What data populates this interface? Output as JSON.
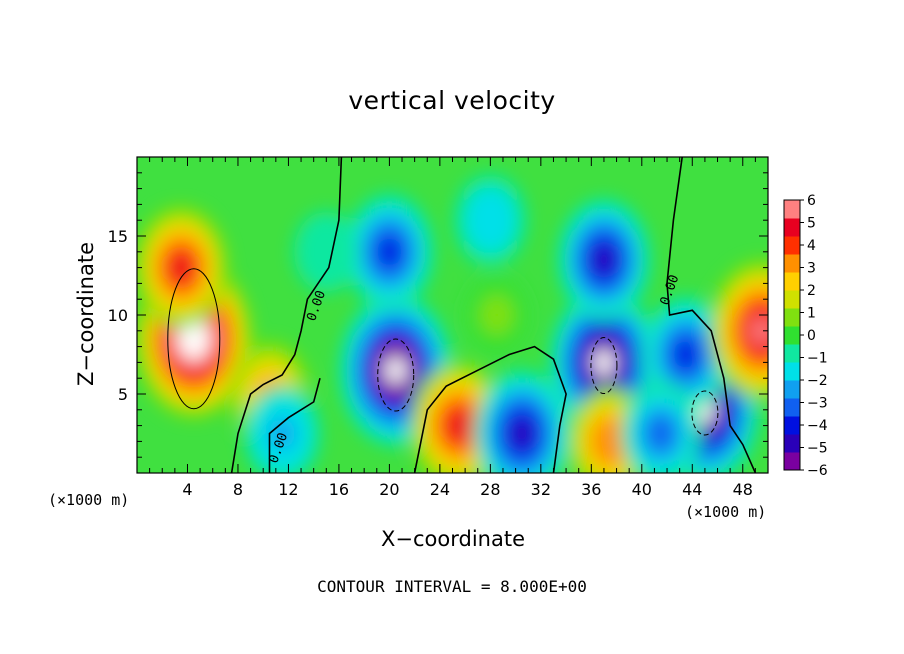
{
  "chart_data": {
    "type": "heatmap",
    "title": "vertical velocity",
    "xlabel": "X−coordinate",
    "ylabel": "Z−coordinate",
    "x_unit_left": "(×1000 m)",
    "x_unit_right": "(×1000 m)",
    "footer": "CONTOUR INTERVAL = 8.000E+00",
    "xlim": [
      0,
      50
    ],
    "ylim": [
      0,
      20
    ],
    "x_ticks": [
      "4",
      "8",
      "12",
      "16",
      "20",
      "24",
      "28",
      "32",
      "36",
      "40",
      "44",
      "48"
    ],
    "y_ticks": [
      "5",
      "10",
      "15"
    ],
    "colorbar": {
      "ticks": [
        "6",
        "5",
        "4",
        "3",
        "2",
        "1",
        "0",
        "−1",
        "−2",
        "−3",
        "−4",
        "−5",
        "−6"
      ],
      "range": [
        -6,
        6
      ],
      "colors": [
        "#7a00a0",
        "#2a00b8",
        "#0010e0",
        "#1060f0",
        "#10a0f0",
        "#00e0e8",
        "#10e8a0",
        "#30e030",
        "#80e010",
        "#d0e000",
        "#ffd000",
        "#ff9000",
        "#ff3000",
        "#e80020",
        "#ff8080"
      ]
    },
    "contour_labels": [
      "0.00",
      "0.00",
      "0.00"
    ],
    "features": [
      {
        "x": 4.5,
        "z": 8.5,
        "value": 7.5
      },
      {
        "x": 3.5,
        "z": 13.0,
        "value": 4.5
      },
      {
        "x": 20.5,
        "z": 6.5,
        "value": -7.0
      },
      {
        "x": 20.0,
        "z": 14.0,
        "value": -4.0
      },
      {
        "x": 37.0,
        "z": 7.0,
        "value": -6.5
      },
      {
        "x": 37.0,
        "z": 13.5,
        "value": -4.5
      },
      {
        "x": 45.0,
        "z": 4.0,
        "value": -6.5
      },
      {
        "x": 43.5,
        "z": 7.5,
        "value": -4.0
      },
      {
        "x": 49.5,
        "z": 9.0,
        "value": 6.0
      },
      {
        "x": 25.5,
        "z": 3.0,
        "value": 5.0
      },
      {
        "x": 30.5,
        "z": 2.5,
        "value": -5.0
      },
      {
        "x": 37.5,
        "z": 2.0,
        "value": 3.5
      },
      {
        "x": 10.5,
        "z": 5.0,
        "value": 3.0
      },
      {
        "x": 11.5,
        "z": 2.5,
        "value": -2.5
      },
      {
        "x": 28.5,
        "z": 10.0,
        "value": 0.5
      },
      {
        "x": 41.5,
        "z": 2.5,
        "value": -3.0
      },
      {
        "x": 15.0,
        "z": 14.0,
        "value": -1.0
      },
      {
        "x": 28.0,
        "z": 16.0,
        "value": -2.0
      }
    ]
  }
}
